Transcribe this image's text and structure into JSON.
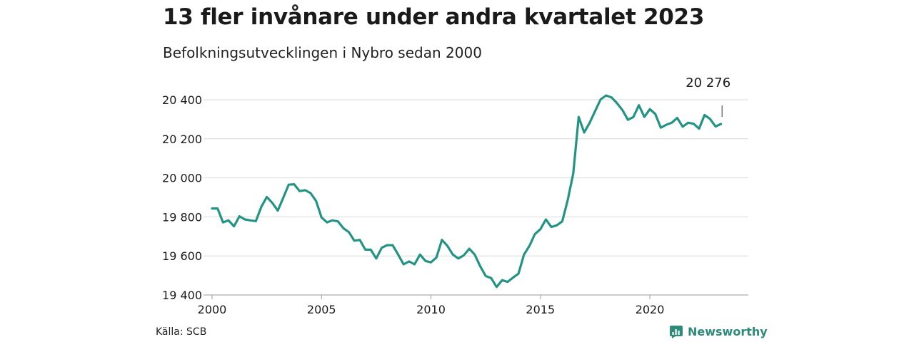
{
  "title": "13 fler invånare under andra kvartalet 2023",
  "subtitle": "Befolkningsutvecklingen i Nybro sedan 2000",
  "source": "Källa: SCB",
  "brand": {
    "name": "Newsworthy",
    "icon": "newsworthy-logo-icon",
    "color": "#2e8b7a"
  },
  "chart_data": {
    "type": "line",
    "title": "13 fler invånare under andra kvartalet 2023",
    "subtitle": "Befolkningsutvecklingen i Nybro sedan 2000",
    "xlabel": "",
    "ylabel": "",
    "xlim": [
      2000,
      2024.5
    ],
    "ylim": [
      19400,
      20400
    ],
    "x_ticks": [
      2000,
      2005,
      2010,
      2015,
      2020
    ],
    "y_ticks": [
      19400,
      19600,
      19800,
      20000,
      20200,
      20400
    ],
    "y_tick_labels": [
      "19 400",
      "19 600",
      "19 800",
      "20 000",
      "20 200",
      "20 400"
    ],
    "grid": "horizontal",
    "line_color": "#239484",
    "last_label": "20 276",
    "series": [
      {
        "x": [
          2000.0,
          2000.25,
          2000.5,
          2000.75,
          2001.0,
          2001.25,
          2001.5,
          2001.75,
          2002.0,
          2002.25,
          2002.5,
          2002.75,
          2003.0,
          2003.25,
          2003.5,
          2003.75,
          2004.0,
          2004.25,
          2004.5,
          2004.75,
          2005.0,
          2005.25,
          2005.5,
          2005.75,
          2006.0,
          2006.25,
          2006.5,
          2006.75,
          2007.0,
          2007.25,
          2007.5,
          2007.75,
          2008.0,
          2008.25,
          2008.5,
          2008.75,
          2009.0,
          2009.25,
          2009.5,
          2009.75,
          2010.0,
          2010.25,
          2010.5,
          2010.75,
          2011.0,
          2011.25,
          2011.5,
          2011.75,
          2012.0,
          2012.25,
          2012.5,
          2012.75,
          2013.0,
          2013.25,
          2013.5,
          2013.75,
          2014.0,
          2014.25,
          2014.5,
          2014.75,
          2015.0,
          2015.25,
          2015.5,
          2015.75,
          2016.0,
          2016.25,
          2016.5,
          2016.75,
          2017.0,
          2017.25,
          2017.5,
          2017.75,
          2018.0,
          2018.25,
          2018.5,
          2018.75,
          2019.0,
          2019.25,
          2019.5,
          2019.75,
          2020.0,
          2020.25,
          2020.5,
          2020.75,
          2021.0,
          2021.25,
          2021.5,
          2021.75,
          2022.0,
          2022.25,
          2022.5,
          2022.75,
          2023.0,
          2023.25
        ],
        "values": [
          19843,
          19843,
          19772,
          19782,
          19752,
          19803,
          19787,
          19782,
          19778,
          19852,
          19902,
          19872,
          19832,
          19897,
          19965,
          19967,
          19932,
          19937,
          19922,
          19882,
          19797,
          19772,
          19782,
          19777,
          19742,
          19722,
          19678,
          19682,
          19632,
          19632,
          19587,
          19642,
          19655,
          19655,
          19607,
          19557,
          19572,
          19557,
          19607,
          19574,
          19567,
          19592,
          19682,
          19652,
          19607,
          19587,
          19603,
          19637,
          19607,
          19547,
          19497,
          19487,
          19441,
          19476,
          19467,
          19489,
          19509,
          19607,
          19652,
          19712,
          19737,
          19787,
          19748,
          19757,
          19777,
          19887,
          20022,
          20312,
          20232,
          20282,
          20342,
          20402,
          20422,
          20412,
          20382,
          20347,
          20297,
          20312,
          20372,
          20312,
          20352,
          20327,
          20257,
          20272,
          20282,
          20307,
          20262,
          20282,
          20277,
          20252,
          20322,
          20302,
          20263,
          20276
        ]
      }
    ]
  }
}
